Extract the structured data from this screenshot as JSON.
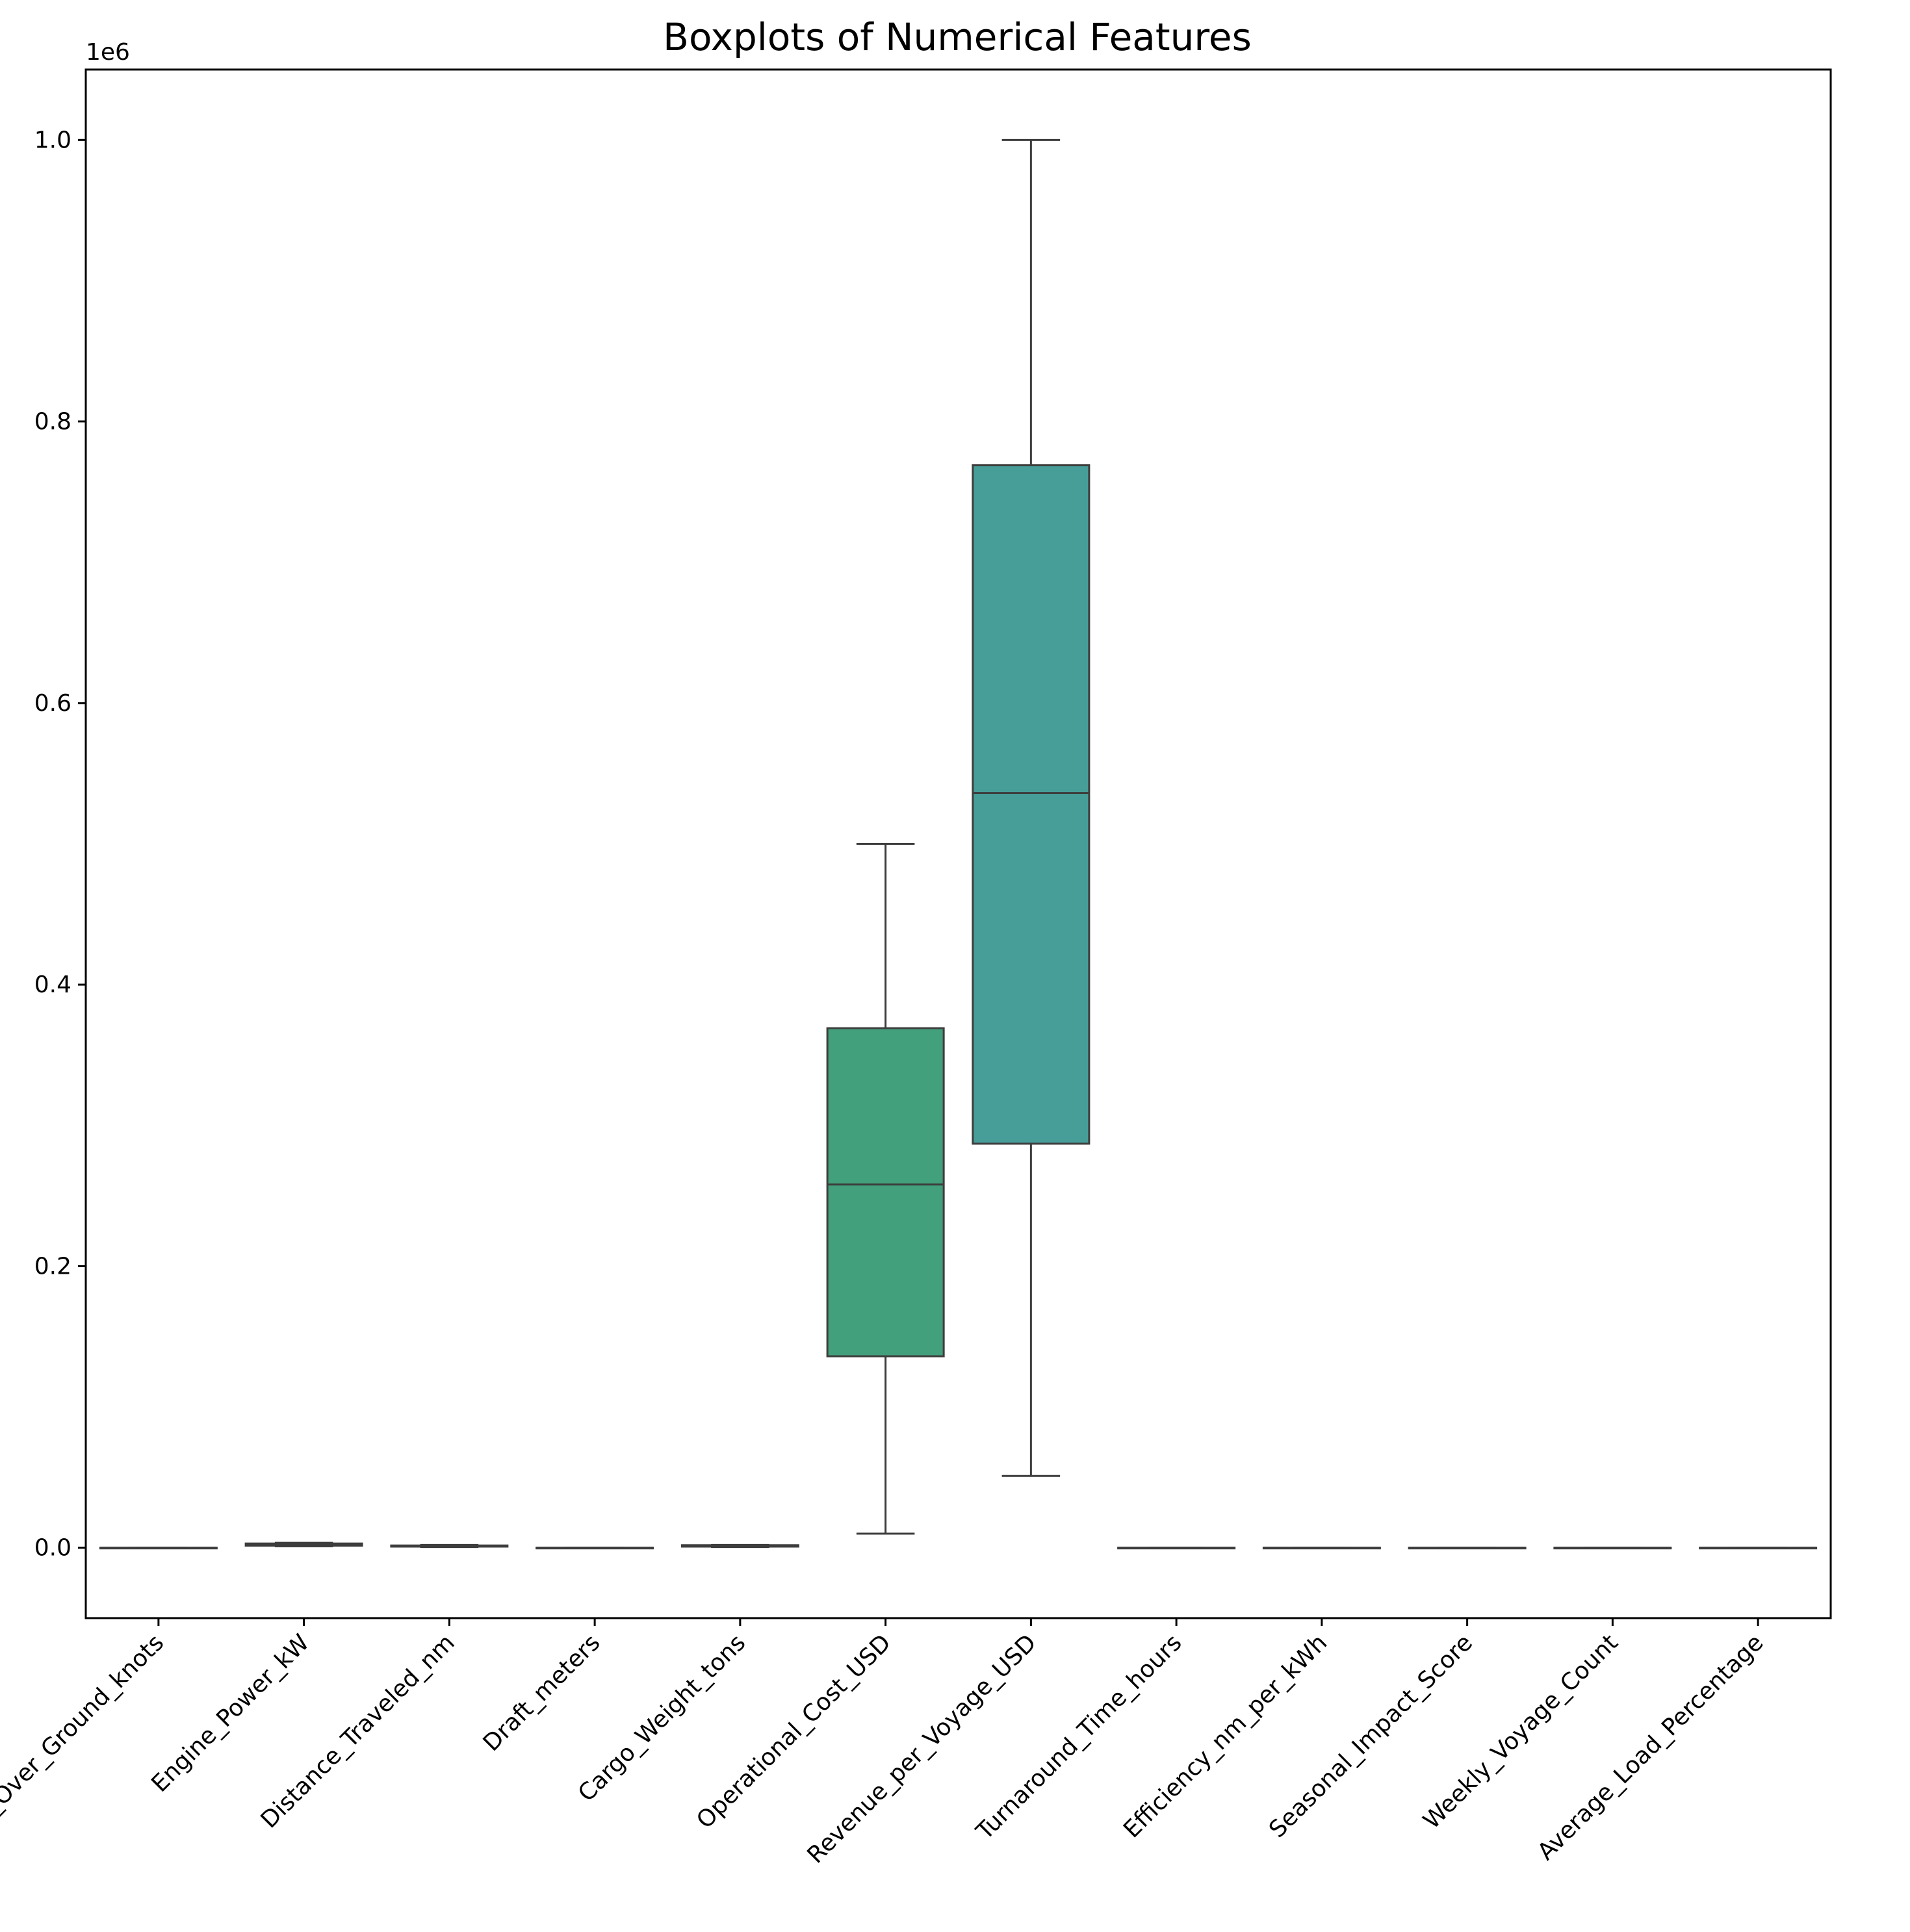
{
  "chart_data": {
    "type": "box",
    "title": "Boxplots of Numerical Features",
    "xlabel": "",
    "ylabel": "",
    "y_offset_label": "1e6",
    "ylim": [
      -0.05,
      1.05
    ],
    "yticks": [
      0.0,
      0.2,
      0.4,
      0.6,
      0.8,
      1.0
    ],
    "ytick_labels": [
      "0.0",
      "0.2",
      "0.4",
      "0.6",
      "0.8",
      "1.0"
    ],
    "grid": false,
    "legend": "none",
    "categories": [
      "Speed_Over_Ground_knots",
      "Engine_Power_kW",
      "Distance_Traveled_nm",
      "Draft_meters",
      "Cargo_Weight_tons",
      "Operational_Cost_USD",
      "Revenue_per_Voyage_USD",
      "Turnaround_Time_hours",
      "Efficiency_nm_per_kWh",
      "Seasonal_Impact_Score",
      "Weekly_Voyage_Count",
      "Average_Load_Percentage"
    ],
    "boxes": [
      {
        "min": 0.0,
        "q1": 0.0,
        "median": 0.0,
        "q3": 0.0,
        "max": 0.0,
        "color": "#472c7a"
      },
      {
        "min": 0.001,
        "q1": 0.0015,
        "median": 0.00225,
        "q3": 0.003,
        "max": 0.0035,
        "color": "#3b518b"
      },
      {
        "min": 0.0005,
        "q1": 0.0008,
        "median": 0.0012,
        "q3": 0.0016,
        "max": 0.002,
        "color": "#2c718e"
      },
      {
        "min": 0.0,
        "q1": 0.0,
        "median": 0.0,
        "q3": 0.0,
        "max": 0.0,
        "color": "#21908d"
      },
      {
        "min": 0.0005,
        "q1": 0.0008,
        "median": 0.0013,
        "q3": 0.0018,
        "max": 0.002,
        "color": "#27ad81"
      },
      {
        "min": 0.01,
        "q1": 0.136,
        "median": 0.258,
        "q3": 0.369,
        "max": 0.5,
        "color": "#42a07c"
      },
      {
        "min": 0.051,
        "q1": 0.287,
        "median": 0.536,
        "q3": 0.769,
        "max": 1.0,
        "color": "#479e99"
      },
      {
        "min": 0.0,
        "q1": 0.0,
        "median": 0.0,
        "q3": 0.0,
        "max": 0.0,
        "color": "#aadc32"
      },
      {
        "min": 0.0,
        "q1": 0.0,
        "median": 0.0,
        "q3": 0.0,
        "max": 0.0,
        "color": "#c9e120"
      },
      {
        "min": 0.0,
        "q1": 0.0,
        "median": 0.0,
        "q3": 0.0,
        "max": 0.0,
        "color": "#dde318"
      },
      {
        "min": 0.0,
        "q1": 0.0,
        "median": 0.0,
        "q3": 0.0,
        "max": 0.0,
        "color": "#e8e419"
      },
      {
        "min": 0.0,
        "q1": 0.0,
        "median": 0.0,
        "q3": 0.0,
        "max": 0.0,
        "color": "#fde725"
      }
    ],
    "line_color": "#3d3d3d"
  }
}
